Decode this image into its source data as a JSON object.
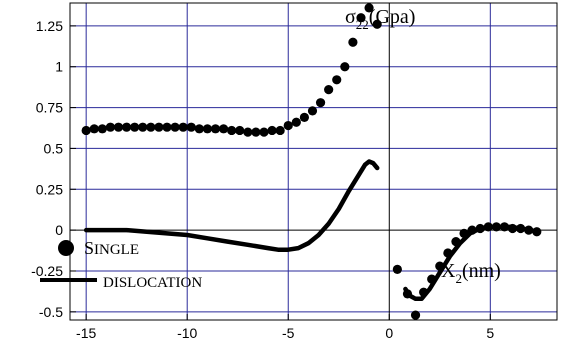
{
  "chart_data": {
    "type": "scatter",
    "title": "",
    "ylabel": {
      "main": "σ",
      "sub": "22",
      "unit": "(Gpa)"
    },
    "xlabel": {
      "main": "X",
      "sub": "2",
      "unit": "(nm)"
    },
    "xlim": [
      -15.8,
      8.3
    ],
    "ylim": [
      -0.55,
      1.39
    ],
    "x_ticks": [
      {
        "value": -15,
        "label": "-15"
      },
      {
        "value": -10,
        "label": "-10"
      },
      {
        "value": -5,
        "label": "-5"
      },
      {
        "value": 0,
        "label": "0"
      },
      {
        "value": 5,
        "label": "5"
      }
    ],
    "y_ticks": [
      {
        "value": 1.25,
        "label": "1.25"
      },
      {
        "value": 1,
        "label": "1"
      },
      {
        "value": 0.75,
        "label": "0.75"
      },
      {
        "value": 0.5,
        "label": "0.5"
      },
      {
        "value": 0.25,
        "label": "0.25"
      },
      {
        "value": 0,
        "label": "0"
      },
      {
        "value": -0.25,
        "label": "-0.25"
      },
      {
        "value": -0.5,
        "label": "-0.5"
      }
    ],
    "grid": true,
    "grid_color": "#2a2a9a",
    "series": [
      {
        "marker": "dot",
        "points": [
          [
            -15.0,
            0.61
          ],
          [
            -14.6,
            0.62
          ],
          [
            -14.2,
            0.62
          ],
          [
            -13.8,
            0.63
          ],
          [
            -13.4,
            0.63
          ],
          [
            -13.0,
            0.63
          ],
          [
            -12.6,
            0.63
          ],
          [
            -12.2,
            0.63
          ],
          [
            -11.8,
            0.63
          ],
          [
            -11.4,
            0.63
          ],
          [
            -11.0,
            0.63
          ],
          [
            -10.6,
            0.63
          ],
          [
            -10.2,
            0.63
          ],
          [
            -9.8,
            0.63
          ],
          [
            -9.4,
            0.62
          ],
          [
            -9.0,
            0.62
          ],
          [
            -8.6,
            0.62
          ],
          [
            -8.2,
            0.62
          ],
          [
            -7.8,
            0.61
          ],
          [
            -7.4,
            0.61
          ],
          [
            -7.0,
            0.6
          ],
          [
            -6.6,
            0.6
          ],
          [
            -6.2,
            0.6
          ],
          [
            -5.8,
            0.61
          ],
          [
            -5.4,
            0.61
          ],
          [
            -5.0,
            0.64
          ],
          [
            -4.6,
            0.66
          ],
          [
            -4.2,
            0.69
          ],
          [
            -3.8,
            0.73
          ],
          [
            -3.4,
            0.78
          ],
          [
            -3.0,
            0.86
          ],
          [
            -2.6,
            0.92
          ],
          [
            -2.2,
            1.0
          ],
          [
            -1.8,
            1.15
          ],
          [
            -1.4,
            1.3
          ],
          [
            -1.0,
            1.36
          ],
          [
            -0.6,
            1.26
          ],
          [
            0.4,
            -0.24
          ],
          [
            0.9,
            -0.39
          ],
          [
            1.3,
            -0.52
          ],
          [
            1.7,
            -0.38
          ],
          [
            2.1,
            -0.3
          ],
          [
            2.5,
            -0.22
          ],
          [
            2.9,
            -0.14
          ],
          [
            3.3,
            -0.07
          ],
          [
            3.7,
            -0.02
          ],
          [
            4.1,
            0.0
          ],
          [
            4.5,
            0.01
          ],
          [
            4.9,
            0.02
          ],
          [
            5.3,
            0.02
          ],
          [
            5.7,
            0.02
          ],
          [
            6.1,
            0.01
          ],
          [
            6.5,
            0.01
          ],
          [
            6.9,
            0.0
          ],
          [
            7.3,
            -0.01
          ]
        ]
      },
      {
        "name": "SINGLE DISLOCATION",
        "marker": "line",
        "segments": [
          [
            [
              -15.0,
              0.0
            ],
            [
              -14.0,
              0.0
            ],
            [
              -13.0,
              0.0
            ],
            [
              -12.0,
              -0.01
            ],
            [
              -11.0,
              -0.02
            ],
            [
              -10.0,
              -0.03
            ],
            [
              -9.0,
              -0.05
            ],
            [
              -8.0,
              -0.07
            ],
            [
              -7.0,
              -0.09
            ],
            [
              -6.0,
              -0.11
            ],
            [
              -5.5,
              -0.12
            ],
            [
              -5.0,
              -0.12
            ],
            [
              -4.5,
              -0.11
            ],
            [
              -4.0,
              -0.08
            ],
            [
              -3.5,
              -0.03
            ],
            [
              -3.0,
              0.04
            ],
            [
              -2.5,
              0.13
            ],
            [
              -2.0,
              0.24
            ],
            [
              -1.5,
              0.34
            ],
            [
              -1.2,
              0.4
            ],
            [
              -1.0,
              0.42
            ],
            [
              -0.8,
              0.41
            ],
            [
              -0.6,
              0.38
            ]
          ],
          [
            [
              0.8,
              -0.36
            ],
            [
              1.0,
              -0.4
            ],
            [
              1.3,
              -0.42
            ],
            [
              1.6,
              -0.42
            ],
            [
              2.0,
              -0.36
            ],
            [
              2.5,
              -0.26
            ],
            [
              3.0,
              -0.16
            ],
            [
              3.5,
              -0.08
            ],
            [
              4.0,
              -0.02
            ],
            [
              4.5,
              0.01
            ],
            [
              5.0,
              0.02
            ],
            [
              5.5,
              0.02
            ],
            [
              6.0,
              0.02
            ],
            [
              6.5,
              0.01
            ],
            [
              7.0,
              0.0
            ],
            [
              7.3,
              -0.01
            ]
          ]
        ]
      }
    ],
    "legend": {
      "placement": "lower-left",
      "line1": {
        "first": "S",
        "rest": "INGLE"
      },
      "line2": "DISLOCATION"
    }
  }
}
